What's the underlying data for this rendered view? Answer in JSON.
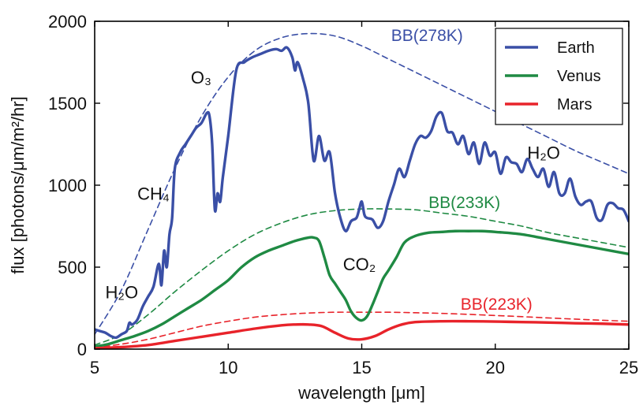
{
  "chart_data": {
    "type": "line",
    "title": "",
    "xlabel": "wavelength [μm]",
    "ylabel": "flux [photons/μm/m²/hr]",
    "xlim": [
      5,
      25
    ],
    "ylim": [
      0,
      2000
    ],
    "xticks": [
      5,
      10,
      15,
      20,
      25
    ],
    "yticks": [
      0,
      500,
      1000,
      1500,
      2000
    ],
    "grid": false,
    "legend": {
      "placement": "top-right",
      "entries": [
        "Earth",
        "Venus",
        "Mars"
      ]
    },
    "colors": {
      "Earth": "#3a4fa6",
      "Venus": "#1f8a43",
      "Mars": "#e8232a"
    },
    "series": [
      {
        "name": "Earth",
        "style": "solid",
        "x": [
          5,
          5.2,
          5.4,
          5.6,
          5.8,
          6,
          6.2,
          6.3,
          6.4,
          6.6,
          6.8,
          7,
          7.2,
          7.4,
          7.5,
          7.6,
          7.7,
          7.8,
          7.9,
          8,
          8.2,
          8.4,
          8.6,
          8.8,
          9,
          9.2,
          9.3,
          9.4,
          9.5,
          9.6,
          9.7,
          9.8,
          10,
          10.3,
          10.6,
          10.9,
          11.2,
          11.5,
          11.8,
          12,
          12.2,
          12.4,
          12.5,
          12.6,
          12.8,
          13,
          13.2,
          13.4,
          13.6,
          13.8,
          14,
          14.2,
          14.4,
          14.6,
          14.8,
          14.9,
          15,
          15.1,
          15.2,
          15.4,
          15.6,
          15.8,
          16,
          16.2,
          16.4,
          16.6,
          16.8,
          17,
          17.2,
          17.4,
          17.6,
          17.8,
          18,
          18.2,
          18.4,
          18.6,
          18.8,
          19,
          19.2,
          19.4,
          19.6,
          19.8,
          20,
          20.2,
          20.4,
          20.6,
          20.8,
          21,
          21.2,
          21.4,
          21.6,
          21.8,
          22,
          22.2,
          22.4,
          22.6,
          22.8,
          23,
          23.2,
          23.4,
          23.6,
          23.8,
          24,
          24.2,
          24.4,
          24.6,
          24.8,
          25
        ],
        "y": [
          120,
          110,
          100,
          80,
          70,
          90,
          110,
          160,
          150,
          180,
          260,
          320,
          380,
          520,
          390,
          600,
          500,
          700,
          800,
          1100,
          1200,
          1250,
          1300,
          1350,
          1380,
          1440,
          1420,
          1250,
          850,
          950,
          900,
          1050,
          1300,
          1700,
          1750,
          1780,
          1800,
          1820,
          1830,
          1820,
          1840,
          1780,
          1700,
          1750,
          1650,
          1500,
          1150,
          1300,
          1150,
          1200,
          950,
          800,
          720,
          780,
          800,
          850,
          900,
          820,
          800,
          790,
          740,
          780,
          900,
          1000,
          1100,
          1050,
          1150,
          1250,
          1300,
          1290,
          1330,
          1420,
          1440,
          1330,
          1320,
          1250,
          1300,
          1190,
          1260,
          1130,
          1260,
          1180,
          1200,
          1070,
          1170,
          1140,
          1130,
          1080,
          1160,
          1100,
          1050,
          1100,
          990,
          1080,
          950,
          950,
          1040,
          930,
          880,
          900,
          900,
          800,
          790,
          880,
          890,
          860,
          850,
          780
        ]
      },
      {
        "name": "Venus",
        "style": "solid",
        "x": [
          5,
          5.5,
          6,
          6.5,
          7,
          7.5,
          8,
          8.5,
          9,
          9.5,
          10,
          10.5,
          11,
          11.5,
          12,
          12.5,
          13,
          13.2,
          13.4,
          13.6,
          13.8,
          14,
          14.2,
          14.4,
          14.6,
          14.8,
          15,
          15.2,
          15.4,
          15.6,
          15.8,
          16,
          16.3,
          16.6,
          17,
          17.5,
          18,
          18.5,
          19,
          19.5,
          20,
          21,
          22,
          23,
          24,
          25
        ],
        "y": [
          15,
          30,
          55,
          80,
          110,
          150,
          200,
          250,
          300,
          360,
          420,
          500,
          560,
          600,
          630,
          660,
          680,
          680,
          660,
          560,
          450,
          400,
          350,
          300,
          230,
          190,
          175,
          200,
          270,
          350,
          430,
          480,
          560,
          650,
          690,
          710,
          715,
          720,
          720,
          720,
          715,
          700,
          670,
          640,
          610,
          580
        ]
      },
      {
        "name": "Mars",
        "style": "solid",
        "x": [
          5,
          6,
          7,
          8,
          9,
          10,
          11,
          12,
          12.5,
          13,
          13.5,
          14,
          14.5,
          15,
          15.5,
          16,
          16.5,
          17,
          18,
          19,
          20,
          21,
          22,
          23,
          24,
          25
        ],
        "y": [
          5,
          12,
          25,
          50,
          75,
          100,
          125,
          145,
          150,
          150,
          140,
          100,
          65,
          60,
          80,
          120,
          150,
          165,
          170,
          170,
          168,
          165,
          162,
          158,
          155,
          150
        ]
      },
      {
        "name": "BB(278K)",
        "style": "dashed",
        "x": [
          5,
          6,
          7,
          8,
          9,
          10,
          11,
          12,
          13,
          14,
          15,
          16,
          17,
          18,
          19,
          20,
          21,
          22,
          23,
          24,
          25
        ],
        "y": [
          90,
          360,
          730,
          1100,
          1420,
          1660,
          1820,
          1900,
          1925,
          1910,
          1850,
          1770,
          1690,
          1610,
          1530,
          1450,
          1370,
          1290,
          1210,
          1140,
          1070
        ]
      },
      {
        "name": "BB(233K)",
        "style": "dashed",
        "x": [
          5,
          6,
          7,
          8,
          9,
          10,
          11,
          12,
          13,
          14,
          15,
          16,
          17,
          18,
          19,
          20,
          21,
          22,
          23,
          24,
          25
        ],
        "y": [
          25,
          90,
          210,
          350,
          480,
          600,
          700,
          770,
          820,
          845,
          855,
          855,
          850,
          830,
          810,
          780,
          750,
          710,
          680,
          650,
          620
        ]
      },
      {
        "name": "BB(223K)",
        "style": "dashed",
        "x": [
          5,
          6,
          7,
          8,
          9,
          10,
          11,
          12,
          13,
          14,
          15,
          16,
          17,
          18,
          19,
          20,
          21,
          22,
          23,
          24,
          25
        ],
        "y": [
          10,
          30,
          60,
          100,
          140,
          170,
          195,
          210,
          220,
          225,
          225,
          225,
          222,
          218,
          212,
          205,
          198,
          190,
          183,
          176,
          170
        ]
      }
    ],
    "annotations": {
      "h2o_low": {
        "text": "H₂O",
        "x": 5.4,
        "y": 310
      },
      "ch4": {
        "text": "CH₄",
        "x": 6.6,
        "y": 910
      },
      "o3": {
        "text": "O₃",
        "x": 8.6,
        "y": 1620
      },
      "co2": {
        "text": "CO₂",
        "x": 14.3,
        "y": 480
      },
      "h2o_high": {
        "text": "H₂O",
        "x": 21.2,
        "y": 1160
      },
      "bb278": {
        "text": "BB(278K)",
        "x": 16.1,
        "y": 1880
      },
      "bb233": {
        "text": "BB(233K)",
        "x": 17.5,
        "y": 860
      },
      "bb223": {
        "text": "BB(223K)",
        "x": 18.7,
        "y": 240
      }
    }
  }
}
